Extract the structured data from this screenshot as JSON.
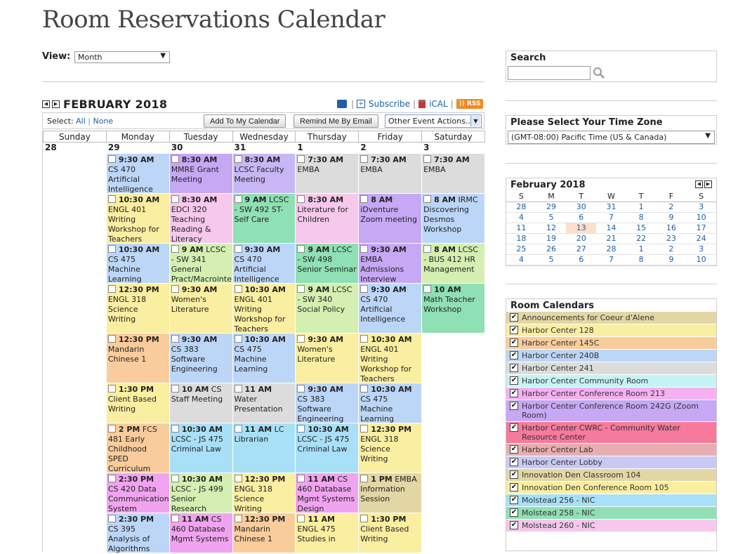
{
  "page_title": "Room Reservations Calendar",
  "view": {
    "label": "View:",
    "selected": "Month"
  },
  "calendar": {
    "month_title": "FEBRUARY 2018",
    "links": {
      "subscribe": "Subscribe",
      "ical": "iCAL",
      "rss": "RSS"
    },
    "select": {
      "label": "Select:",
      "all": "All",
      "none": "None"
    },
    "buttons": {
      "add": "Add To My Calendar",
      "remind": "Remind Me By Email",
      "other": "Other Event Actions..."
    },
    "weekdays": [
      "Sunday",
      "Monday",
      "Tuesday",
      "Wednesday",
      "Thursday",
      "Friday",
      "Saturday"
    ],
    "days": [
      {
        "num": "28",
        "events": []
      },
      {
        "num": "29",
        "events": [
          {
            "time": "9:30 AM",
            "rest": "",
            "title": "CS 470 Artificial Intelligence",
            "color": "#bcd6f7",
            "h": 57
          },
          {
            "time": "10:30 AM",
            "rest": "",
            "title": "ENGL 401 Writing Workshop for Teachers",
            "color": "#faeea0",
            "h": 71
          },
          {
            "time": "10:30 AM",
            "rest": "",
            "title": "CS 475 Machine Learning",
            "color": "#bcd6f7",
            "h": 57
          },
          {
            "time": "12:30 PM",
            "rest": "",
            "title": "ENGL 318 Science Writing",
            "color": "#faeea0",
            "h": 71
          },
          {
            "time": "12:30 PM",
            "rest": "",
            "title": "Mandarin Chinese 1",
            "color": "#f9cc9c",
            "h": 71
          },
          {
            "time": "1:30 PM",
            "rest": "",
            "title": "Client Based Writing",
            "color": "#faeea0",
            "h": 57
          },
          {
            "time": "2 PM",
            "rest": "FCS",
            "title": "481 Early Childhood SPED Curriculum",
            "color": "#f9cc9c",
            "h": 71
          },
          {
            "time": "2:30 PM",
            "rest": "",
            "title": "CS 420 Data Communication System",
            "color": "#f0a4ef",
            "h": 57
          },
          {
            "time": "2:30 PM",
            "rest": "",
            "title": "CS 395 Analysis of Algorithms",
            "color": "#bcd6f7",
            "h": 57
          }
        ]
      },
      {
        "num": "30",
        "events": [
          {
            "time": "8:30 AM",
            "rest": "",
            "title": "MMRE Grant Meeting",
            "color": "#c6a8f5",
            "h": 57
          },
          {
            "time": "8:30 AM",
            "rest": "",
            "title": "EDCI 320 Teaching Reading & Literacy",
            "color": "#f6c8ec",
            "h": 71
          },
          {
            "time": "9 AM",
            "rest": "LCSC",
            "title": "- SW 341 General Pract/Macrointe",
            "color": "#d4efb1",
            "h": 57
          },
          {
            "time": "9:30 AM",
            "rest": "",
            "title": "Women's Literature",
            "color": "#faeea0",
            "h": 71
          },
          {
            "time": "9:30 AM",
            "rest": "",
            "title": "CS 383 Software Engineering",
            "color": "#bcd6f7",
            "h": 71
          },
          {
            "time": "10 AM",
            "rest": "CS",
            "title": "Staff Meeting",
            "color": "#dcdcdc",
            "h": 57
          },
          {
            "time": "10:30 AM",
            "rest": "",
            "title": "LCSC - JS 475 Criminal Law",
            "color": "#a8e0f7",
            "h": 71
          },
          {
            "time": "10:30 AM",
            "rest": "",
            "title": "LCSC - JS 499 Senior Research",
            "color": "#d4efb1",
            "h": 57
          },
          {
            "time": "11 AM",
            "rest": "CS",
            "title": "460 Database Mgmt Systems",
            "color": "#f0a4ef",
            "h": 57
          }
        ]
      },
      {
        "num": "31",
        "events": [
          {
            "time": "8:30 AM",
            "rest": "",
            "title": "LCSC Faculty Meeting",
            "color": "#c9b7f5",
            "h": 57
          },
          {
            "time": "9 AM",
            "rest": "LCSC",
            "title": "- SW 492 ST-Self Care",
            "color": "#8fe0b4",
            "h": 71
          },
          {
            "time": "9:30 AM",
            "rest": "",
            "title": "CS 470 Artificial Intelligence",
            "color": "#bcd6f7",
            "h": 57
          },
          {
            "time": "10:30 AM",
            "rest": "",
            "title": "ENGL 401 Writing Workshop for Teachers",
            "color": "#faeea0",
            "h": 71
          },
          {
            "time": "10:30 AM",
            "rest": "",
            "title": "CS 475 Machine Learning",
            "color": "#bcd6f7",
            "h": 71
          },
          {
            "time": "11 AM",
            "rest": "",
            "title": "Water Presentation",
            "color": "#dcdcdc",
            "h": 57
          },
          {
            "time": "11 AM",
            "rest": "LC",
            "title": "Librarian",
            "color": "#a8e0f7",
            "h": 71
          },
          {
            "time": "12:30 PM",
            "rest": "",
            "title": "ENGL 318 Science Writing",
            "color": "#faeea0",
            "h": 57
          },
          {
            "time": "12:30 PM",
            "rest": "",
            "title": "Mandarin Chinese 1",
            "color": "#f9cc9c",
            "h": 57
          }
        ]
      },
      {
        "num": "1",
        "events": [
          {
            "time": "7:30 AM",
            "rest": "",
            "title": "EMBA",
            "color": "#dcdcdc",
            "h": 57
          },
          {
            "time": "8:30 AM",
            "rest": "",
            "title": "Literature for Children",
            "color": "#f6c8ec",
            "h": 71
          },
          {
            "time": "9 AM",
            "rest": "LCSC",
            "title": "- SW 498 Senior Seminar",
            "color": "#8fe0b4",
            "h": 57
          },
          {
            "time": "9 AM",
            "rest": "LCSC",
            "title": "- SW 340 Social Policy",
            "color": "#d4efb1",
            "h": 71
          },
          {
            "time": "9:30 AM",
            "rest": "",
            "title": "Women's Literature",
            "color": "#faeea0",
            "h": 71
          },
          {
            "time": "9:30 AM",
            "rest": "",
            "title": "CS 383 Software Engineering",
            "color": "#bcd6f7",
            "h": 57
          },
          {
            "time": "10:30 AM",
            "rest": "",
            "title": "LCSC - JS 475 Criminal Law",
            "color": "#a8e0f7",
            "h": 71
          },
          {
            "time": "11 AM",
            "rest": "CS",
            "title": "460 Database Mgmt Systems Design",
            "color": "#f0a4ef",
            "h": 57
          },
          {
            "time": "11 AM",
            "rest": "",
            "title": "ENGL 475 Studies in",
            "color": "#faeea0",
            "h": 57
          }
        ]
      },
      {
        "num": "2",
        "events": [
          {
            "time": "7:30 AM",
            "rest": "",
            "title": "EMBA",
            "color": "#dcdcdc",
            "h": 57
          },
          {
            "time": "8 AM",
            "rest": "",
            "title": "iDventure Zoom meeting",
            "color": "#c6a8f5",
            "h": 71
          },
          {
            "time": "9:30 AM",
            "rest": "",
            "title": "EMBA Admissions Interview",
            "color": "#c6a8f5",
            "h": 57
          },
          {
            "time": "9:30 AM",
            "rest": "",
            "title": "CS 470 Artificial Intelligence",
            "color": "#bcd6f7",
            "h": 71
          },
          {
            "time": "10:30 AM",
            "rest": "",
            "title": "ENGL 401 Writing Workshop for Teachers",
            "color": "#faeea0",
            "h": 71
          },
          {
            "time": "10:30 AM",
            "rest": "",
            "title": "CS 475 Machine Learning",
            "color": "#bcd6f7",
            "h": 57
          },
          {
            "time": "12:30 PM",
            "rest": "",
            "title": "ENGL 318 Science Writing",
            "color": "#faeea0",
            "h": 71
          },
          {
            "time": "1 PM",
            "rest": "EMBA",
            "title": "Information Session",
            "color": "#e2d6a4",
            "h": 57
          },
          {
            "time": "1:30 PM",
            "rest": "",
            "title": "Client Based Writing",
            "color": "#faeea0",
            "h": 57
          }
        ]
      },
      {
        "num": "3",
        "events": [
          {
            "time": "7:30 AM",
            "rest": "",
            "title": "EMBA",
            "color": "#dcdcdc",
            "h": 57
          },
          {
            "time": "8 AM",
            "rest": "IRMC",
            "title": "Discovering Desmos Workshop",
            "color": "#bcd6f7",
            "h": 71
          },
          {
            "time": "8 AM",
            "rest": "LCSC",
            "title": "- BUS 412 HR Management",
            "color": "#d4efb1",
            "h": 57
          },
          {
            "time": "10 AM",
            "rest": "",
            "title": "Math Teacher Workshop",
            "color": "#8fe0b4",
            "h": 71
          }
        ]
      }
    ]
  },
  "search": {
    "title": "Search",
    "value": ""
  },
  "timezone": {
    "title": "Please Select Your Time Zone",
    "selected": "(GMT-08:00) Pacific Time (US & Canada)"
  },
  "mini_calendar": {
    "title": "February 2018",
    "weekdays": [
      "S",
      "M",
      "T",
      "W",
      "T",
      "F",
      "S"
    ],
    "weeks": [
      [
        "28",
        "29",
        "30",
        "31",
        "1",
        "2",
        "3"
      ],
      [
        "4",
        "5",
        "6",
        "7",
        "8",
        "9",
        "10"
      ],
      [
        "11",
        "12",
        "13",
        "14",
        "15",
        "16",
        "17"
      ],
      [
        "18",
        "19",
        "20",
        "21",
        "22",
        "23",
        "24"
      ],
      [
        "25",
        "26",
        "27",
        "28",
        "1",
        "2",
        "3"
      ],
      [
        "4",
        "5",
        "6",
        "7",
        "8",
        "9",
        "10"
      ]
    ],
    "today": "13"
  },
  "room_calendars": {
    "title": "Room Calendars",
    "items": [
      {
        "label": "Announcements for Coeur d'Alene",
        "color": "#e2d6a4",
        "checked": true
      },
      {
        "label": "Harbor Center 128",
        "color": "#faeea0",
        "checked": true
      },
      {
        "label": "Harbor Center 145C",
        "color": "#f9cc9c",
        "checked": true
      },
      {
        "label": "Harbor Center 240B",
        "color": "#bcd6f7",
        "checked": true
      },
      {
        "label": "Harbor Center 241",
        "color": "#dcdcdc",
        "checked": true
      },
      {
        "label": "Harbor Center Community Room",
        "color": "#c5f3f3",
        "checked": true
      },
      {
        "label": "Harbor Center Conference Room 213",
        "color": "#f6b0f2",
        "checked": true
      },
      {
        "label": "Harbor Center Conference Room 242G (Zoom Room)",
        "color": "#c6a8f5",
        "checked": true
      },
      {
        "label": "Harbor Center CWRC - Community Water Resource Center",
        "color": "#f57a9c",
        "checked": true
      },
      {
        "label": "Harbor Center Lab",
        "color": "#e8adb0",
        "checked": true
      },
      {
        "label": "Harbor Center Lobby",
        "color": "#c9c9f5",
        "checked": true
      },
      {
        "label": "Innovation Den Classroom 104",
        "color": "#e2d6a4",
        "checked": true
      },
      {
        "label": "Innovation Den Conference Room 105",
        "color": "#faeea0",
        "checked": true
      },
      {
        "label": "Molstead 256 - NIC",
        "color": "#a8e0f7",
        "checked": true
      },
      {
        "label": "Molstead 258 - NIC",
        "color": "#8fe0b4",
        "checked": true
      },
      {
        "label": "Molstead 260 - NIC",
        "color": "#f6c8ec",
        "checked": true
      }
    ]
  }
}
